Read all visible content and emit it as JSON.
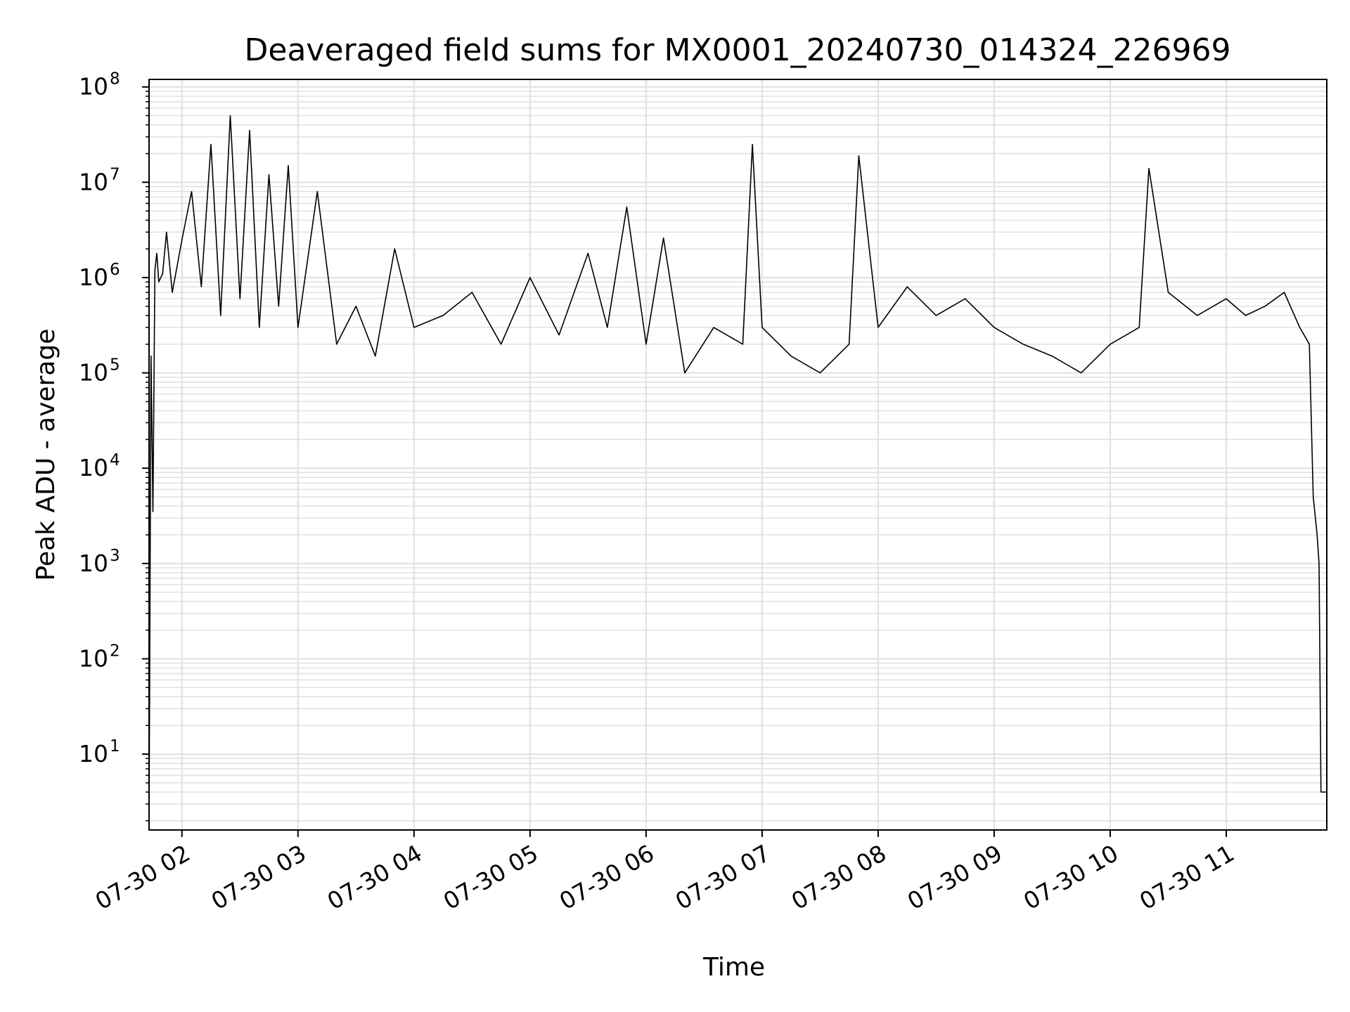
{
  "chart_data": {
    "type": "line",
    "title": "Deaveraged field sums for MX0001_20240730_014324_226969",
    "xlabel": "Time",
    "ylabel": "Peak ADU - average",
    "y_scale": "log",
    "ylim": [
      1.6,
      120000000
    ],
    "xlim": [
      "2024-07-30 01:43",
      "2024-07-30 11:52"
    ],
    "grid": true,
    "line_color": "#000000",
    "grid_color": "#e0e0e0",
    "x_ticks": [
      {
        "value": "2024-07-30 02:00",
        "label": "07-30 02"
      },
      {
        "value": "2024-07-30 03:00",
        "label": "07-30 03"
      },
      {
        "value": "2024-07-30 04:00",
        "label": "07-30 04"
      },
      {
        "value": "2024-07-30 05:00",
        "label": "07-30 05"
      },
      {
        "value": "2024-07-30 06:00",
        "label": "07-30 06"
      },
      {
        "value": "2024-07-30 07:00",
        "label": "07-30 07"
      },
      {
        "value": "2024-07-30 08:00",
        "label": "07-30 08"
      },
      {
        "value": "2024-07-30 09:00",
        "label": "07-30 09"
      },
      {
        "value": "2024-07-30 10:00",
        "label": "07-30 10"
      },
      {
        "value": "2024-07-30 11:00",
        "label": "07-30 11"
      }
    ],
    "y_ticks": [
      {
        "value": 10,
        "base": "10",
        "exp": "1"
      },
      {
        "value": 100,
        "base": "10",
        "exp": "2"
      },
      {
        "value": 1000,
        "base": "10",
        "exp": "3"
      },
      {
        "value": 10000,
        "base": "10",
        "exp": "4"
      },
      {
        "value": 100000,
        "base": "10",
        "exp": "5"
      },
      {
        "value": 1000000,
        "base": "10",
        "exp": "6"
      },
      {
        "value": 10000000,
        "base": "10",
        "exp": "7"
      },
      {
        "value": 100000000,
        "base": "10",
        "exp": "8"
      }
    ],
    "series": [
      {
        "x": [
          "2024-07-30 01:43",
          "2024-07-30 01:44",
          "2024-07-30 01:45",
          "2024-07-30 01:46",
          "2024-07-30 01:47",
          "2024-07-30 01:48",
          "2024-07-30 01:50",
          "2024-07-30 01:52",
          "2024-07-30 01:55",
          "2024-07-30 01:58",
          "2024-07-30 02:00",
          "2024-07-30 02:05",
          "2024-07-30 02:10",
          "2024-07-30 02:15",
          "2024-07-30 02:20",
          "2024-07-30 02:25",
          "2024-07-30 02:30",
          "2024-07-30 02:35",
          "2024-07-30 02:40",
          "2024-07-30 02:45",
          "2024-07-30 02:50",
          "2024-07-30 02:55",
          "2024-07-30 03:00",
          "2024-07-30 03:10",
          "2024-07-30 03:20",
          "2024-07-30 03:30",
          "2024-07-30 03:40",
          "2024-07-30 03:50",
          "2024-07-30 04:00",
          "2024-07-30 04:15",
          "2024-07-30 04:30",
          "2024-07-30 04:45",
          "2024-07-30 05:00",
          "2024-07-30 05:15",
          "2024-07-30 05:30",
          "2024-07-30 05:40",
          "2024-07-30 05:50",
          "2024-07-30 06:00",
          "2024-07-30 06:09",
          "2024-07-30 06:20",
          "2024-07-30 06:35",
          "2024-07-30 06:50",
          "2024-07-30 06:55",
          "2024-07-30 07:00",
          "2024-07-30 07:15",
          "2024-07-30 07:30",
          "2024-07-30 07:45",
          "2024-07-30 07:50",
          "2024-07-30 08:00",
          "2024-07-30 08:15",
          "2024-07-30 08:30",
          "2024-07-30 08:45",
          "2024-07-30 09:00",
          "2024-07-30 09:15",
          "2024-07-30 09:30",
          "2024-07-30 09:45",
          "2024-07-30 10:00",
          "2024-07-30 10:15",
          "2024-07-30 10:20",
          "2024-07-30 10:30",
          "2024-07-30 10:45",
          "2024-07-30 11:00",
          "2024-07-30 11:10",
          "2024-07-30 11:20",
          "2024-07-30 11:30",
          "2024-07-30 11:38",
          "2024-07-30 11:43",
          "2024-07-30 11:45",
          "2024-07-30 11:47",
          "2024-07-30 11:48",
          "2024-07-30 11:49",
          "2024-07-30 11:50",
          "2024-07-30 11:52"
        ],
        "y": [
          2,
          150000,
          3500,
          1200000,
          1800000,
          900000,
          1100000,
          3000000,
          700000,
          1500000,
          2500000,
          8000000,
          800000,
          25000000,
          400000,
          50000000,
          600000,
          35000000,
          300000,
          12000000,
          500000,
          15000000,
          300000,
          8000000,
          200000,
          500000,
          150000,
          2000000,
          300000,
          400000,
          700000,
          200000,
          1000000,
          250000,
          1800000,
          300000,
          5500000,
          200000,
          2600000,
          100000,
          300000,
          200000,
          25000000,
          300000,
          150000,
          100000,
          200000,
          19000000,
          300000,
          800000,
          400000,
          600000,
          300000,
          200000,
          150000,
          100000,
          200000,
          300000,
          14000000,
          700000,
          400000,
          600000,
          400000,
          500000,
          700000,
          300000,
          200000,
          5000,
          2000,
          1000,
          4,
          4,
          4
        ]
      }
    ]
  }
}
